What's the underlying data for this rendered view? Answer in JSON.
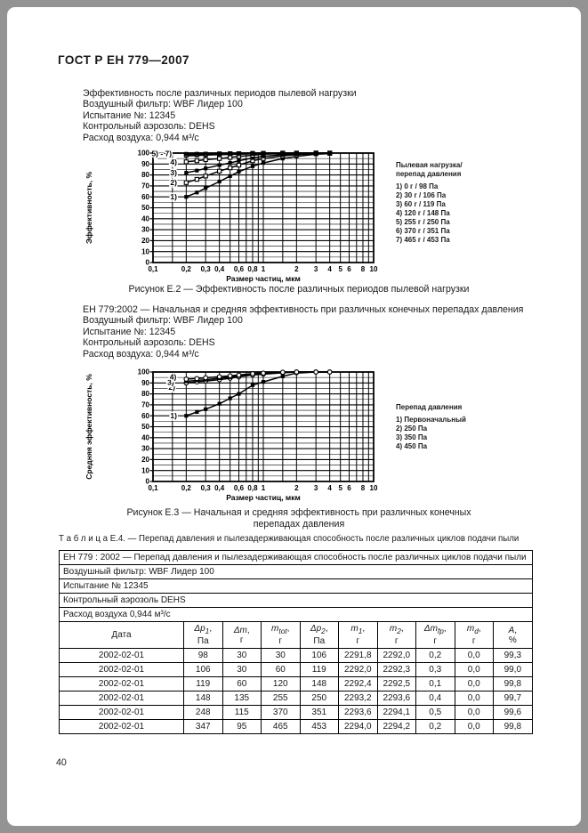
{
  "page": {
    "header": "ГОСТ Р ЕН 779—2007",
    "page_number": "40"
  },
  "info_block_1": {
    "lines": [
      "Эффективность после различных периодов пылевой нагрузки",
      "Воздушный фильтр: WBF Лидер 100",
      "Испытание №: 12345",
      "Контрольный аэрозоль: DEHS",
      "Расход воздуха:  0,944 м³/с"
    ]
  },
  "info_block_2": {
    "lines": [
      "ЕН 779:2002 — Начальная и средняя эффективность при различных конечных перепадах давления",
      "Воздушный фильтр: WBF Лидер 100",
      "Испытание №: 12345",
      "Контрольный аэрозоль: DEHS",
      "Расход воздуха:  0,944 м³/с"
    ]
  },
  "figure_e2": {
    "caption": "Рисунок Е.2 — Эффективность после различных периодов пылевой нагрузки"
  },
  "figure_e3": {
    "caption_line1": "Рисунок Е.3 — Начальная и средняя эффективность при различных конечных",
    "caption_line2": "перепадах давления"
  },
  "chart_data": [
    {
      "type": "line",
      "figure": "Е.2",
      "xlabel": "Размер частиц, мкм",
      "ylabel": "Эффективность, %",
      "x_scale": "log",
      "xlim": [
        0.1,
        10
      ],
      "ylim": [
        0,
        100
      ],
      "grid": true,
      "x_grid": [
        0.15,
        0.2,
        0.3,
        0.4,
        0.5,
        0.6,
        0.7,
        0.8,
        0.9,
        1,
        1.5,
        2,
        3,
        4,
        5,
        6,
        7,
        8,
        9,
        10
      ],
      "x_ticks": [
        0.1,
        0.2,
        0.3,
        0.4,
        0.6,
        0.8,
        1,
        2,
        3,
        4,
        5,
        6,
        8,
        10
      ],
      "x_tick_labels": [
        "0,1",
        "0,2",
        "0,3",
        "0,4",
        "0,6",
        "0,8",
        "1",
        "2",
        "3",
        "4",
        "5",
        "6",
        "8",
        "10"
      ],
      "y_tick_step": 10,
      "legend_position": "right",
      "legend_title_lines": [
        "Пылевая нагрузка/",
        "перепад давления"
      ],
      "legend": [
        "1) 0 г / 98 Па",
        "2) 30 г / 106 Па",
        "3) 60 г / 119 Па",
        "4) 120 г / 148 Па",
        "5) 255 г / 250 Па",
        "6) 370 г / 351 Па",
        "7) 465 г / 453 Па"
      ],
      "annotations": [
        {
          "text": "5) - 7)",
          "x": 0.148,
          "y": 99.5
        }
      ],
      "series": [
        {
          "name": "1) 0 г / 98 Па",
          "label": "1)",
          "label_x": 0.168,
          "label_y": 60,
          "marker": "square-filled",
          "x": [
            0.2,
            0.25,
            0.3,
            0.4,
            0.5,
            0.6,
            0.8,
            1,
            1.5,
            2,
            3,
            4
          ],
          "y": [
            60,
            64,
            68,
            74,
            79,
            83,
            88,
            91,
            95,
            97,
            99,
            99.5
          ]
        },
        {
          "name": "2) 30 г / 106 Па",
          "label": "2)",
          "label_x": 0.168,
          "label_y": 73,
          "marker": "square-open",
          "x": [
            0.2,
            0.25,
            0.3,
            0.4,
            0.5,
            0.6,
            0.8,
            1,
            1.5,
            2,
            3,
            4
          ],
          "y": [
            73,
            76,
            79,
            83.5,
            86.5,
            89,
            93,
            95,
            97.5,
            98.5,
            99.5,
            99.8
          ]
        },
        {
          "name": "3) 60 г / 119 Па",
          "label": "3)",
          "label_x": 0.168,
          "label_y": 82,
          "marker": "square-filled",
          "x": [
            0.2,
            0.25,
            0.3,
            0.4,
            0.5,
            0.6,
            0.8,
            1,
            1.5,
            2,
            3,
            4
          ],
          "y": [
            82,
            84,
            86,
            89,
            91,
            93,
            95.5,
            97,
            98.5,
            99.3,
            99.8,
            100
          ]
        },
        {
          "name": "4) 120 г / 148 Па",
          "label": "4)",
          "label_x": 0.168,
          "label_y": 92,
          "marker": "square-open",
          "x": [
            0.2,
            0.25,
            0.3,
            0.4,
            0.5,
            0.6,
            0.8,
            1,
            1.5,
            2,
            3,
            4
          ],
          "y": [
            92,
            93,
            94,
            95,
            96,
            97,
            98,
            99,
            99.5,
            99.8,
            100,
            100
          ]
        },
        {
          "name": "5) 255 г / 250 Па",
          "marker": "square-filled",
          "x": [
            0.2,
            0.25,
            0.3,
            0.4,
            0.5,
            0.6,
            0.8,
            1,
            1.5,
            2,
            3,
            4
          ],
          "y": [
            97.5,
            97.8,
            98.1,
            98.5,
            98.8,
            99,
            99.3,
            99.5,
            99.8,
            100,
            100,
            100
          ]
        },
        {
          "name": "6) 370 г / 351 Па",
          "marker": "square-open",
          "x": [
            0.2,
            0.25,
            0.3,
            0.4,
            0.5,
            0.6,
            0.8,
            1,
            1.5,
            2,
            3,
            4
          ],
          "y": [
            98.5,
            98.7,
            98.9,
            99.2,
            99.4,
            99.5,
            99.7,
            99.8,
            100,
            100,
            100,
            100
          ]
        },
        {
          "name": "7) 465 г / 453 Па",
          "marker": "square-filled",
          "x": [
            0.2,
            0.25,
            0.3,
            0.4,
            0.5,
            0.6,
            0.8,
            1,
            1.5,
            2,
            3,
            4
          ],
          "y": [
            99.3,
            99.4,
            99.5,
            99.7,
            99.8,
            99.9,
            100,
            100,
            100,
            100,
            100,
            100
          ]
        }
      ]
    },
    {
      "type": "line",
      "figure": "Е.3",
      "xlabel": "Размер частиц, мкм",
      "ylabel": "Средняя эффективность, %",
      "x_scale": "log",
      "xlim": [
        0.1,
        10
      ],
      "ylim": [
        0,
        100
      ],
      "grid": true,
      "x_grid": [
        0.15,
        0.2,
        0.3,
        0.4,
        0.5,
        0.6,
        0.7,
        0.8,
        0.9,
        1,
        1.5,
        2,
        3,
        4,
        5,
        6,
        7,
        8,
        9,
        10
      ],
      "x_ticks": [
        0.1,
        0.2,
        0.3,
        0.4,
        0.6,
        0.8,
        1,
        2,
        3,
        4,
        5,
        6,
        8,
        10
      ],
      "x_tick_labels": [
        "0,1",
        "0,2",
        "0,3",
        "0,4",
        "0,6",
        "0,8",
        "1",
        "2",
        "3",
        "4",
        "5",
        "6",
        "8",
        "10"
      ],
      "y_tick_step": 10,
      "legend_position": "right",
      "legend_title_lines": [
        "Перепад давления"
      ],
      "legend": [
        "1) Первоначальный",
        "2) 250 Па",
        "3) 350 Па",
        "4) 450 Па"
      ],
      "annotations": [],
      "series": [
        {
          "name": "1) Первоначальный",
          "label": "1)",
          "label_x": 0.168,
          "label_y": 60,
          "marker": "square-filled",
          "x": [
            0.2,
            0.25,
            0.3,
            0.4,
            0.5,
            0.6,
            0.8,
            1,
            1.5,
            2,
            3,
            4
          ],
          "y": [
            60,
            63.5,
            66,
            71,
            76,
            80,
            88,
            91,
            96,
            99,
            100,
            100
          ]
        },
        {
          "name": "2) 250 Па",
          "label": "2)",
          "label_x": 0.162,
          "label_y": 86,
          "marker": "circle-open",
          "x": [
            0.2,
            0.25,
            0.3,
            0.4,
            0.5,
            0.6,
            0.8,
            1,
            1.5,
            2,
            3,
            4
          ],
          "y": [
            90,
            91,
            91.8,
            93,
            94.3,
            95.5,
            97.3,
            98,
            99.3,
            100,
            100,
            100
          ]
        },
        {
          "name": "3) 350 Па",
          "label": "3)",
          "label_x": 0.158,
          "label_y": 90.5,
          "marker": "square-filled",
          "x": [
            0.2,
            0.25,
            0.3,
            0.4,
            0.5,
            0.6,
            0.8,
            1,
            1.5,
            2,
            3,
            4
          ],
          "y": [
            91.5,
            92.3,
            93,
            94.3,
            95.3,
            96.3,
            98,
            98.7,
            99.6,
            100,
            100,
            100
          ]
        },
        {
          "name": "4) 450 Па",
          "label": "4)",
          "label_x": 0.166,
          "label_y": 95.5,
          "marker": "circle-open",
          "x": [
            0.2,
            0.25,
            0.3,
            0.4,
            0.5,
            0.6,
            0.8,
            1,
            1.5,
            2,
            3,
            4
          ],
          "y": [
            93.5,
            94,
            94.7,
            95.7,
            96.5,
            97.2,
            98.5,
            99,
            99.8,
            100,
            100,
            100
          ]
        }
      ]
    }
  ],
  "table_e4": {
    "title": "Т а б л и ц а Е.4. — Перепад давления и пылезадерживающая способность после различных циклов подачи пыли",
    "preamble_rows": [
      "ЕН 779 : 2002 — Перепад давления и пылезадерживающая способность после различных циклов подачи пыли",
      "Воздушный фильтр: WBF Лидер 100",
      "Испытание № 12345",
      "Контрольный аэрозоль DEHS",
      "Расход воздуха  0,944 м³/с"
    ],
    "columns": [
      {
        "sym": "Дата",
        "sub": "",
        "unit": ""
      },
      {
        "sym": "Δp",
        "sub": "1",
        "unit": "Па"
      },
      {
        "sym": "Δm",
        "sub": "",
        "unit": "г"
      },
      {
        "sym": "m",
        "sub": "tot",
        "unit": "г"
      },
      {
        "sym": "Δp",
        "sub": "2",
        "unit": "Па"
      },
      {
        "sym": "m",
        "sub": "1",
        "unit": "г"
      },
      {
        "sym": "m",
        "sub": "2",
        "unit": "г"
      },
      {
        "sym": "Δm",
        "sub": "fp",
        "unit": "г"
      },
      {
        "sym": "m",
        "sub": "d",
        "unit": "г"
      },
      {
        "sym": "A",
        "sub": "",
        "unit": "%"
      }
    ],
    "rows": [
      [
        "2002-02-01",
        "98",
        "30",
        "30",
        "106",
        "2291,8",
        "2292,0",
        "0,2",
        "0,0",
        "99,3"
      ],
      [
        "2002-02-01",
        "106",
        "30",
        "60",
        "119",
        "2292,0",
        "2292,3",
        "0,3",
        "0,0",
        "99,0"
      ],
      [
        "2002-02-01",
        "119",
        "60",
        "120",
        "148",
        "2292,4",
        "2292,5",
        "0,1",
        "0,0",
        "99,8"
      ],
      [
        "2002-02-01",
        "148",
        "135",
        "255",
        "250",
        "2293,2",
        "2293,6",
        "0,4",
        "0,0",
        "99,7"
      ],
      [
        "2002-02-01",
        "248",
        "115",
        "370",
        "351",
        "2293,6",
        "2294,1",
        "0,5",
        "0,0",
        "99,6"
      ],
      [
        "2002-02-01",
        "347",
        "95",
        "465",
        "453",
        "2294,0",
        "2294,2",
        "0,2",
        "0,0",
        "99,8"
      ]
    ]
  }
}
